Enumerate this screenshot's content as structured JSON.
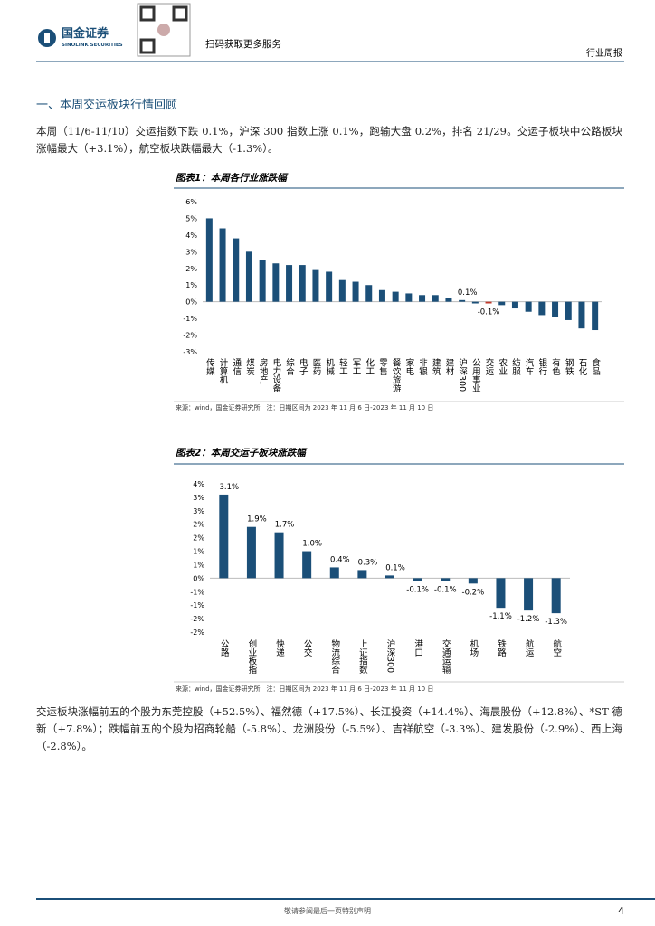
{
  "header": {
    "brand": "国金证券",
    "brand_en": "SINOLINK SECURITIES",
    "qr_text": "扫码获取更多服务",
    "report_type": "行业周报"
  },
  "section_title": "一、本周交运板块行情回顾",
  "paragraphs": [
    "本周（11/6-11/10）交运指数下跌 0.1%，沪深 300 指数上涨 0.1%，跑输大盘 0.2%，排名 21/29。交运子板块中公路板块涨幅最大（+3.1%），航空板块跌幅最大（-1.3%）。",
    "交运板块涨幅前五的个股为东莞控股（+52.5%）、福然德（+17.5%）、长江投资（+14.4%）、海晨股份（+12.8%）、*ST 德新（+7.8%）；跌幅前五的个股为招商轮船（-5.8%）、龙洲股份（-5.5%）、吉祥航空（-3.3%）、建发股份（-2.9%）、西上海（-2.8%）。"
  ],
  "chart_data": [
    {
      "type": "bar",
      "title": "图表1：本周各行业涨跌幅",
      "categories": [
        "传媒",
        "计算机",
        "通信",
        "煤炭",
        "房地产",
        "电力设备",
        "综合",
        "电子",
        "医药",
        "机械",
        "轻工",
        "军工",
        "化工",
        "零售",
        "餐饮旅游",
        "家电",
        "非银",
        "建筑",
        "建材",
        "沪深300",
        "公用事业",
        "交运",
        "农业",
        "纺服",
        "汽车",
        "银行",
        "有色",
        "钢铁",
        "石化",
        "食品"
      ],
      "values": [
        5.0,
        4.4,
        3.8,
        3.0,
        2.5,
        2.3,
        2.2,
        2.2,
        1.9,
        1.8,
        1.3,
        1.2,
        1.0,
        0.7,
        0.6,
        0.5,
        0.4,
        0.4,
        0.2,
        0.1,
        -0.1,
        -0.1,
        -0.2,
        -0.4,
        -0.6,
        -0.8,
        -0.9,
        -1.1,
        -1.6,
        -1.7
      ],
      "value_labels": [
        null,
        null,
        null,
        null,
        null,
        null,
        null,
        null,
        null,
        null,
        null,
        null,
        null,
        null,
        null,
        null,
        null,
        null,
        null,
        "0.1%",
        null,
        "-0.1%",
        null,
        null,
        null,
        null,
        null,
        null,
        null,
        null
      ],
      "colors": [
        "#1b4f78",
        "#1b4f78",
        "#1b4f78",
        "#1b4f78",
        "#1b4f78",
        "#1b4f78",
        "#1b4f78",
        "#1b4f78",
        "#1b4f78",
        "#1b4f78",
        "#1b4f78",
        "#1b4f78",
        "#1b4f78",
        "#1b4f78",
        "#1b4f78",
        "#1b4f78",
        "#1b4f78",
        "#1b4f78",
        "#1b4f78",
        "#1b4f78",
        "#1b4f78",
        "#c0392b",
        "#1b4f78",
        "#1b4f78",
        "#1b4f78",
        "#1b4f78",
        "#1b4f78",
        "#1b4f78",
        "#1b4f78",
        "#1b4f78"
      ],
      "ylim": [
        -3,
        6
      ],
      "yticks": [
        {
          "value": 6,
          "label": "6%"
        },
        {
          "value": 5,
          "label": "5%"
        },
        {
          "value": 4,
          "label": "4%"
        },
        {
          "value": 3,
          "label": "3%"
        },
        {
          "value": 2,
          "label": "2%"
        },
        {
          "value": 1,
          "label": "1%"
        },
        {
          "value": 0,
          "label": "0%"
        },
        {
          "value": -1,
          "label": "-1%"
        },
        {
          "value": -2,
          "label": "-2%"
        },
        {
          "value": -3,
          "label": "-3%"
        }
      ],
      "source": "来源：wind，国金证券研究所　注：日期区间为 2023 年 11 月 6 日-2023 年 11 月 10 日"
    },
    {
      "type": "bar",
      "title": "图表2：本周交运子板块涨跌幅",
      "categories": [
        "公路",
        "创业板指",
        "快递",
        "公交",
        "物流综合",
        "上证指数",
        "沪深300",
        "港口",
        "交通运输",
        "机场",
        "铁路",
        "航运",
        "航空"
      ],
      "values": [
        3.1,
        1.9,
        1.7,
        1.0,
        0.4,
        0.3,
        0.1,
        -0.1,
        -0.1,
        -0.2,
        -1.1,
        -1.2,
        -1.3
      ],
      "value_labels": [
        "3.1%",
        "1.9%",
        "1.7%",
        "1.0%",
        "0.4%",
        "0.3%",
        "0.1%",
        "-0.1%",
        "-0.1%",
        "-0.2%",
        "-1.1%",
        "-1.2%",
        "-1.3%"
      ],
      "colors": [
        "#1b4f78",
        "#1b4f78",
        "#1b4f78",
        "#1b4f78",
        "#1b4f78",
        "#1b4f78",
        "#1b4f78",
        "#1b4f78",
        "#1b4f78",
        "#1b4f78",
        "#1b4f78",
        "#1b4f78",
        "#1b4f78"
      ],
      "ylim": [
        -2,
        3.5
      ],
      "yticks": [
        {
          "value": 3.5,
          "label": "4%"
        },
        {
          "value": 3,
          "label": "3%"
        },
        {
          "value": 2.5,
          "label": "3%"
        },
        {
          "value": 2,
          "label": "2%"
        },
        {
          "value": 1.5,
          "label": "2%"
        },
        {
          "value": 1,
          "label": "1%"
        },
        {
          "value": 0.5,
          "label": "1%"
        },
        {
          "value": 0,
          "label": "0%"
        },
        {
          "value": -0.5,
          "label": "-1%"
        },
        {
          "value": -1,
          "label": "-1%"
        },
        {
          "value": -1.5,
          "label": "-2%"
        },
        {
          "value": -2,
          "label": "-2%"
        }
      ],
      "source": "来源：wind，国金证券研究所　注：日期区间为 2023 年 11 月 6 日-2023 年 11 月 10 日"
    }
  ],
  "footer": {
    "disclaimer": "敬请参阅最后一页特别声明",
    "page": "4"
  }
}
